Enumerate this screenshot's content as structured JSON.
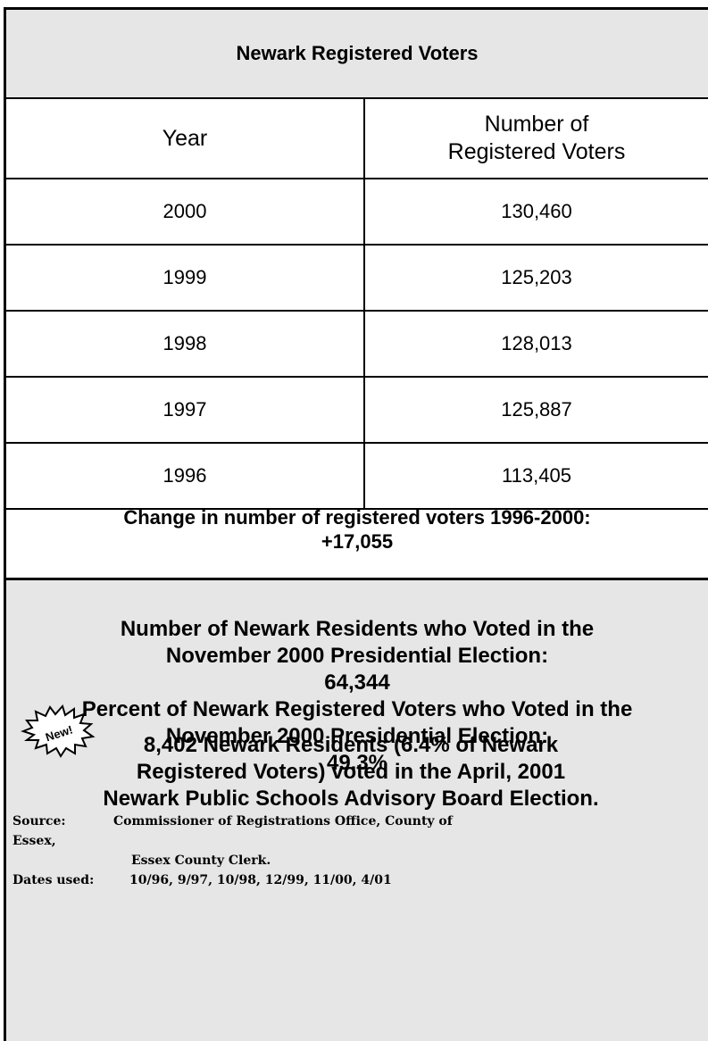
{
  "title": "Newark Registered Voters",
  "table": {
    "col_year": "Year",
    "col_voters_line1": "Number of",
    "col_voters_line2": "Registered Voters",
    "rows": [
      {
        "year": "2000",
        "voters": "130,460"
      },
      {
        "year": "1999",
        "voters": "125,203"
      },
      {
        "year": "1998",
        "voters": "128,013"
      },
      {
        "year": "1997",
        "voters": "125,887"
      },
      {
        "year": "1996",
        "voters": "113,405"
      }
    ]
  },
  "change": {
    "label": "Change in number of registered voters 1996-2000:",
    "value": "+17,055"
  },
  "election": {
    "voted_line1": "Number of Newark Residents who Voted in the",
    "voted_line2": "November 2000 Presidential Election:",
    "voted_value": "64,344",
    "percent_line1": "Percent of Newark Registered Voters who Voted in the",
    "percent_line2": "November 2000 Presidential Election:",
    "percent_value": "49.3%"
  },
  "new_badge": "New!",
  "board": {
    "line1": "8,402 Newark Residents (6.4% of Newark",
    "line2": "Registered Voters) voted in the April, 2001",
    "line3": "Newark Public Schools Advisory Board Election."
  },
  "source": {
    "label": "Source:",
    "line1": "Commissioner of Registrations Office, County of",
    "line1_cont": "Essex,",
    "line2": "Essex County Clerk.",
    "dates_label": "Dates used:",
    "dates": "10/96, 9/97, 10/98, 12/99, 11/00, 4/01"
  }
}
